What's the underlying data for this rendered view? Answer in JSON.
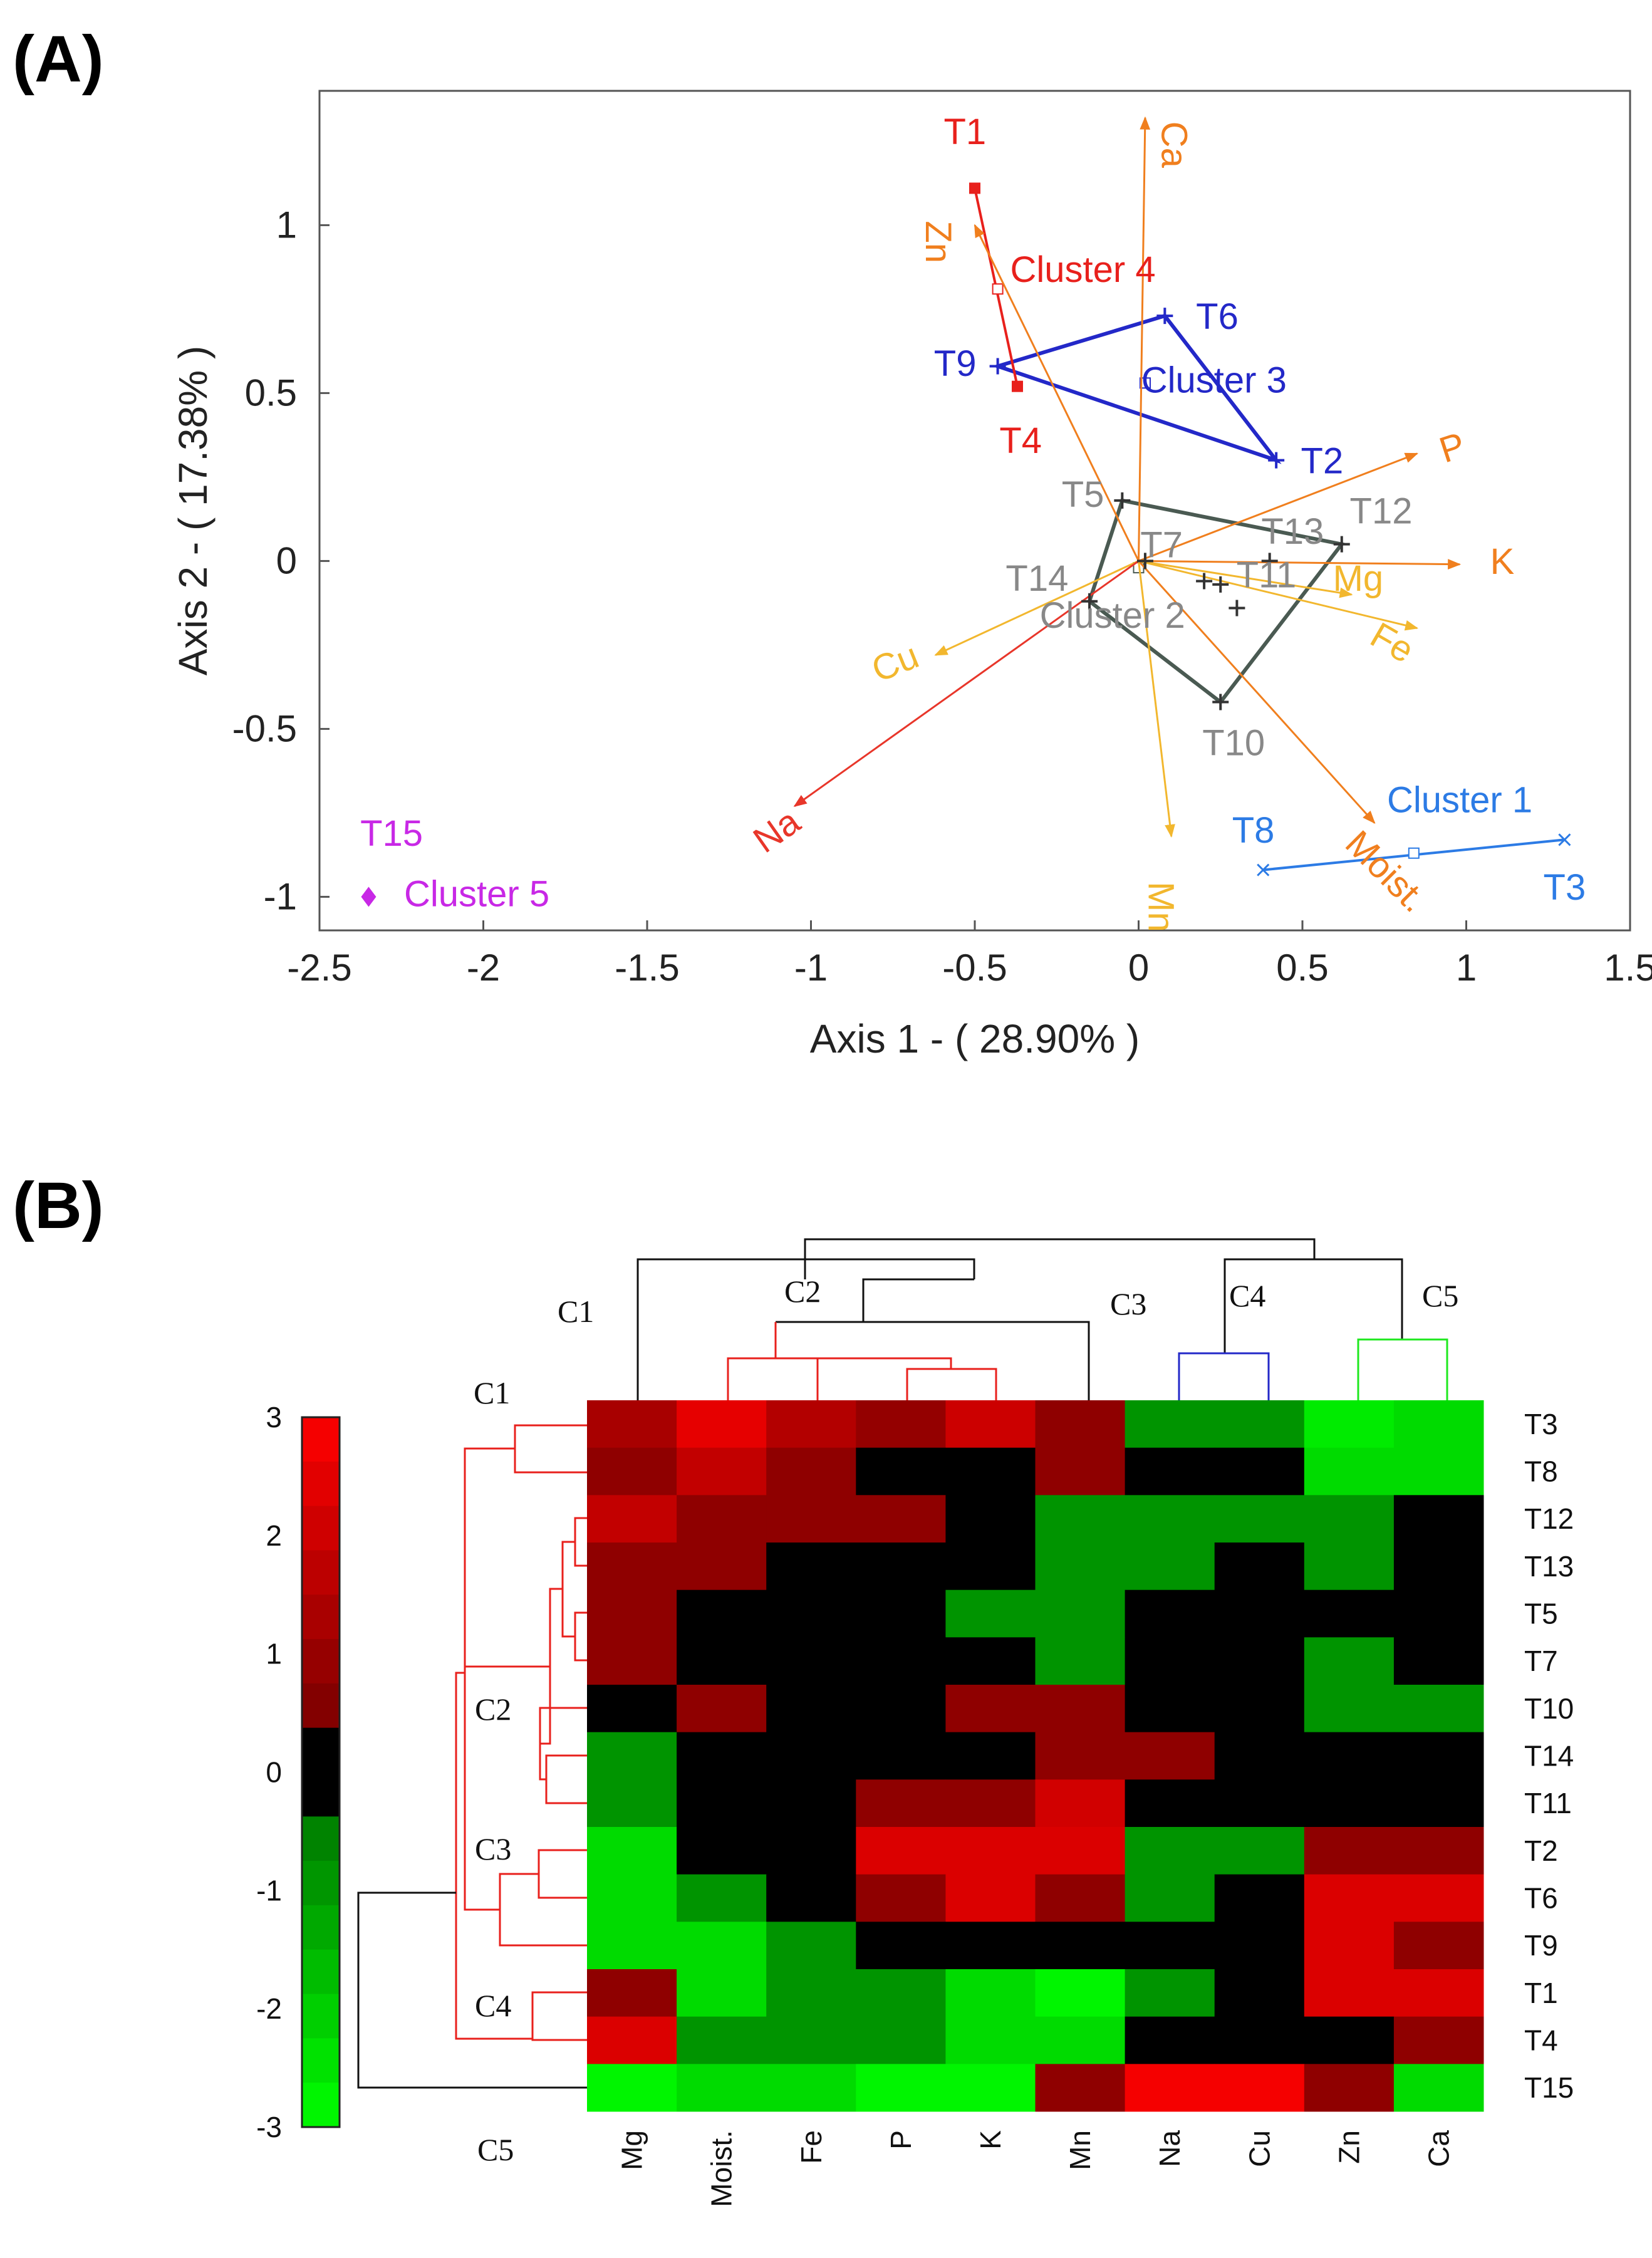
{
  "chart_data": [
    {
      "type": "scatter",
      "panel_label": "(A)",
      "title": "",
      "xlabel": "Axis 1 - ( 28.90% )",
      "ylabel": "Axis 2 - ( 17.38% )",
      "xlim": [
        -2.5,
        1.5
      ],
      "ylim": [
        -1.1,
        1.4
      ],
      "xticks": [
        -2.5,
        -2,
        -1.5,
        -1,
        -0.5,
        0,
        0.5,
        1,
        1.5
      ],
      "yticks": [
        -1,
        -0.5,
        0,
        0.5,
        1
      ],
      "xtick_labels": [
        "-2.5",
        "-2",
        "-1.5",
        "-1",
        "-0.5",
        "0",
        "0.5",
        "1",
        "1.5"
      ],
      "ytick_labels": [
        "-1",
        "-0.5",
        "0",
        "0.5",
        "1"
      ],
      "grid": false,
      "vectors": [
        {
          "label": "Ca",
          "x": 0.02,
          "y": 1.32,
          "color": "#F07F1E",
          "label_rot": 90,
          "lx": 0.1,
          "ly": 1.24
        },
        {
          "label": "Zn",
          "x": -0.5,
          "y": 1.0,
          "color": "#F07F1E",
          "label_rot": 90,
          "lx": -0.62,
          "ly": 0.95
        },
        {
          "label": "P",
          "x": 0.85,
          "y": 0.32,
          "color": "#F07F1E",
          "label_rot": -18,
          "lx": 0.96,
          "ly": 0.33
        },
        {
          "label": "K",
          "x": 0.98,
          "y": -0.01,
          "color": "#F07F1E",
          "label_rot": 0,
          "lx": 1.11,
          "ly": -0.01
        },
        {
          "label": "Mg",
          "x": 0.65,
          "y": -0.1,
          "color": "#F2B72E",
          "label_rot": 0,
          "lx": 0.67,
          "ly": -0.06
        },
        {
          "label": "Fe",
          "x": 0.85,
          "y": -0.2,
          "color": "#F2B72E",
          "label_rot": 30,
          "lx": 0.77,
          "ly": -0.25
        },
        {
          "label": "Moist.",
          "x": 0.72,
          "y": -0.78,
          "color": "#F07F1E",
          "label_rot": 45,
          "lx": 0.75,
          "ly": -0.93
        },
        {
          "label": "Mn",
          "x": 0.1,
          "y": -0.82,
          "color": "#F2B72E",
          "label_rot": 90,
          "lx": 0.06,
          "ly": -1.03
        },
        {
          "label": "Cu",
          "x": -0.62,
          "y": -0.28,
          "color": "#F2B72E",
          "label_rot": -22,
          "lx": -0.74,
          "ly": -0.31
        },
        {
          "label": "Na",
          "x": -1.05,
          "y": -0.73,
          "color": "#E8362A",
          "label_rot": -35,
          "lx": -1.1,
          "ly": -0.81
        }
      ],
      "points": [
        {
          "label": "T1",
          "x": -0.5,
          "y": 1.11,
          "color": "#E8201C",
          "marker": "square",
          "lx": -0.53,
          "ly": 1.27
        },
        {
          "label": "T4",
          "x": -0.37,
          "y": 0.52,
          "color": "#E8201C",
          "marker": "square",
          "lx": -0.36,
          "ly": 0.35
        },
        {
          "label": "T6",
          "x": 0.08,
          "y": 0.73,
          "color": "#2328C8",
          "marker": "plus",
          "lx": 0.24,
          "ly": 0.72
        },
        {
          "label": "T9",
          "x": -0.43,
          "y": 0.58,
          "color": "#2328C8",
          "marker": "plus",
          "lx": -0.56,
          "ly": 0.58
        },
        {
          "label": "T2",
          "x": 0.42,
          "y": 0.3,
          "color": "#2328C8",
          "marker": "plus",
          "lx": 0.56,
          "ly": 0.29
        },
        {
          "label": "T5",
          "x": -0.05,
          "y": 0.18,
          "color": "#333333",
          "marker": "plus",
          "lx": -0.17,
          "ly": 0.19
        },
        {
          "label": "T12",
          "x": 0.62,
          "y": 0.05,
          "color": "#333333",
          "marker": "plus",
          "lx": 0.74,
          "ly": 0.14
        },
        {
          "label": "T13",
          "x": 0.4,
          "y": 0.0,
          "color": "#333333",
          "marker": "plus",
          "lx": 0.47,
          "ly": 0.08
        },
        {
          "label": "T7",
          "x": 0.02,
          "y": 0.0,
          "color": "#333333",
          "marker": "plus",
          "lx": 0.07,
          "ly": 0.04
        },
        {
          "label": "T11",
          "x": 0.2,
          "y": -0.06,
          "color": "#333333",
          "marker": "plus",
          "lx": 0.39,
          "ly": -0.05
        },
        {
          "label": "",
          "x": 0.25,
          "y": -0.07,
          "color": "#333333",
          "marker": "plus",
          "lx": 0,
          "ly": 0
        },
        {
          "label": "",
          "x": 0.3,
          "y": -0.14,
          "color": "#333333",
          "marker": "plus",
          "lx": 0,
          "ly": 0
        },
        {
          "label": "T14",
          "x": -0.15,
          "y": -0.12,
          "color": "#333333",
          "marker": "plus",
          "lx": -0.31,
          "ly": -0.06
        },
        {
          "label": "T10",
          "x": 0.25,
          "y": -0.42,
          "color": "#333333",
          "marker": "plus",
          "lx": 0.29,
          "ly": -0.55
        },
        {
          "label": "T8",
          "x": 0.38,
          "y": -0.92,
          "color": "#2C7BE5",
          "marker": "x",
          "lx": 0.35,
          "ly": -0.81
        },
        {
          "label": "T3",
          "x": 1.3,
          "y": -0.83,
          "color": "#2C7BE5",
          "marker": "x",
          "lx": 1.3,
          "ly": -0.98
        },
        {
          "label": "T15",
          "x": -2.35,
          "y": -1.0,
          "color": "#C828E6",
          "marker": "diamond",
          "lx": -2.28,
          "ly": -0.82
        }
      ],
      "point_label_colors": {
        "T1": "#E8201C",
        "T4": "#E8201C",
        "T6": "#2328C8",
        "T9": "#2328C8",
        "T2": "#2328C8",
        "T5": "#888888",
        "T12": "#888888",
        "T13": "#888888",
        "T7": "#888888",
        "T11": "#888888",
        "T14": "#888888",
        "T10": "#888888",
        "T8": "#2C7BE5",
        "T3": "#2C7BE5",
        "T15": "#C828E6"
      },
      "clusters": [
        {
          "label": "Cluster 1",
          "color": "#2C7BE5",
          "members": [
            "T8",
            "T3"
          ],
          "centroid": [
            0.84,
            -0.87
          ],
          "lx": 0.98,
          "ly": -0.72
        },
        {
          "label": "Cluster 2",
          "color": "#4A5A52",
          "members": [
            "T5",
            "T12",
            "T10",
            "T14"
          ],
          "centroid": [
            0.0,
            -0.02
          ],
          "lx": -0.08,
          "ly": -0.17
        },
        {
          "label": "Cluster 3",
          "color": "#2328C8",
          "members": [
            "T6",
            "T2",
            "T9"
          ],
          "centroid": [
            0.02,
            0.53
          ],
          "lx": 0.23,
          "ly": 0.53
        },
        {
          "label": "Cluster 4",
          "color": "#E8201C",
          "members": [
            "T1",
            "T4"
          ],
          "centroid": [
            -0.43,
            0.81
          ],
          "lx": -0.17,
          "ly": 0.86
        },
        {
          "label": "Cluster 5",
          "color": "#C828E6",
          "members": [
            "T15"
          ],
          "centroid": [
            -2.35,
            -1.0
          ],
          "lx": -2.02,
          "ly": -1.0
        }
      ]
    },
    {
      "type": "heatmap",
      "panel_label": "(B)",
      "title": "",
      "columns": [
        "Mg",
        "Moist.",
        "Fe",
        "P",
        "K",
        "Mn",
        "Na",
        "Cu",
        "Zn",
        "Ca"
      ],
      "rows": [
        "T3",
        "T8",
        "T12",
        "T13",
        "T5",
        "T7",
        "T10",
        "T14",
        "T11",
        "T2",
        "T6",
        "T9",
        "T1",
        "T4",
        "T15"
      ],
      "values": [
        [
          1.3,
          2.5,
          1.5,
          0.9,
          2.0,
          0.8,
          -0.9,
          -0.9,
          -2.6,
          -2.3
        ],
        [
          0.8,
          1.8,
          0.8,
          0.0,
          0.0,
          0.8,
          0.0,
          0.0,
          -2.3,
          -2.3
        ],
        [
          1.8,
          0.8,
          0.8,
          0.8,
          0.0,
          -0.9,
          -0.9,
          -0.9,
          -0.9,
          0.0
        ],
        [
          0.8,
          0.8,
          0.0,
          0.0,
          0.0,
          -0.9,
          -0.9,
          0.0,
          -0.9,
          0.0
        ],
        [
          0.8,
          0.0,
          0.0,
          0.0,
          -0.9,
          -0.9,
          0.0,
          0.0,
          0.0,
          0.0
        ],
        [
          0.8,
          0.0,
          0.0,
          0.0,
          0.0,
          -0.9,
          0.0,
          0.0,
          -0.9,
          0.0
        ],
        [
          0.0,
          0.8,
          0.0,
          0.0,
          0.8,
          0.8,
          0.0,
          0.0,
          -0.9,
          -0.9
        ],
        [
          -0.9,
          0.0,
          0.0,
          0.0,
          0.0,
          0.8,
          0.8,
          0.0,
          0.0,
          0.0
        ],
        [
          -0.9,
          0.0,
          0.0,
          0.8,
          0.8,
          2.1,
          0.0,
          0.0,
          0.0,
          0.0
        ],
        [
          -2.3,
          0.0,
          0.0,
          2.3,
          2.3,
          2.3,
          -0.9,
          -0.9,
          0.8,
          0.8
        ],
        [
          -2.3,
          -0.9,
          0.0,
          0.8,
          2.3,
          0.8,
          -0.9,
          0.0,
          2.3,
          2.3
        ],
        [
          -2.3,
          -2.3,
          -0.9,
          0.0,
          0.0,
          0.0,
          0.0,
          0.0,
          2.3,
          0.8
        ],
        [
          0.8,
          -2.3,
          -0.9,
          -0.9,
          -2.3,
          -2.8,
          -0.9,
          0.0,
          2.3,
          2.3
        ],
        [
          2.3,
          -0.9,
          -0.9,
          -0.9,
          -2.3,
          -2.3,
          0.0,
          0.0,
          0.0,
          0.8
        ],
        [
          -2.8,
          -2.3,
          -2.3,
          -2.8,
          -2.8,
          0.8,
          2.8,
          2.8,
          0.8,
          -2.3
        ]
      ],
      "colorbar": {
        "min": -3,
        "max": 3,
        "ticks": [
          "3",
          "2",
          "1",
          "0",
          "-1",
          "-2",
          "-3"
        ]
      },
      "column_dendrogram_labels": [
        "C1",
        "C2",
        "C3",
        "C4",
        "C5"
      ],
      "row_dendrogram_labels": [
        "C1",
        "C2",
        "C3",
        "C4",
        "C5"
      ]
    }
  ]
}
